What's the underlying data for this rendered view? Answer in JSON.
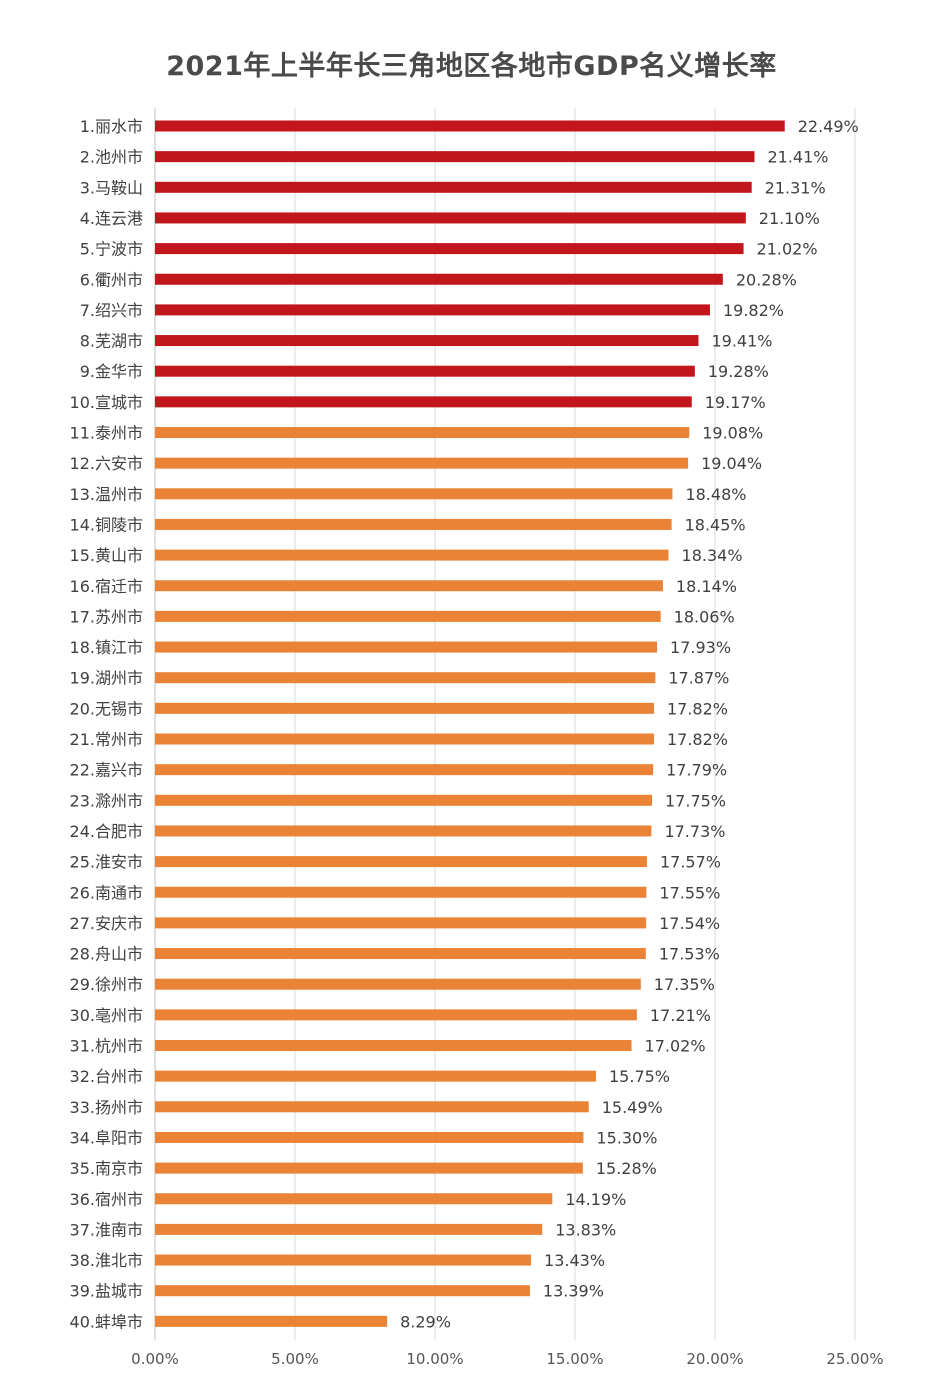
{
  "chart_data": {
    "type": "bar",
    "orientation": "horizontal",
    "title": "2021年上半年长三角地区各地市GDP名义增长率",
    "xlabel": "",
    "ylabel": "",
    "xlim": [
      0,
      25
    ],
    "x_ticks": [
      "0.00%",
      "5.00%",
      "10.00%",
      "15.00%",
      "20.00%",
      "25.00%"
    ],
    "grid": "vertical",
    "colors": {
      "top10": "#c0161c",
      "rest": "#ea8335",
      "gridline": "#d9d9d9",
      "axis": "#bfbfbf",
      "text": "#404040"
    },
    "categories": [
      "1.丽水市",
      "2.池州市",
      "3.马鞍山",
      "4.连云港",
      "5.宁波市",
      "6.衢州市",
      "7.绍兴市",
      "8.芜湖市",
      "9.金华市",
      "10.宣城市",
      "11.泰州市",
      "12.六安市",
      "13.温州市",
      "14.铜陵市",
      "15.黄山市",
      "16.宿迁市",
      "17.苏州市",
      "18.镇江市",
      "19.湖州市",
      "20.无锡市",
      "21.常州市",
      "22.嘉兴市",
      "23.滁州市",
      "24.合肥市",
      "25.淮安市",
      "26.南通市",
      "27.安庆市",
      "28.舟山市",
      "29.徐州市",
      "30.亳州市",
      "31.杭州市",
      "32.台州市",
      "33.扬州市",
      "34.阜阳市",
      "35.南京市",
      "36.宿州市",
      "37.淮南市",
      "38.淮北市",
      "39.盐城市",
      "40.蚌埠市"
    ],
    "values": [
      22.49,
      21.41,
      21.31,
      21.1,
      21.02,
      20.28,
      19.82,
      19.41,
      19.28,
      19.17,
      19.08,
      19.04,
      18.48,
      18.45,
      18.34,
      18.14,
      18.06,
      17.93,
      17.87,
      17.82,
      17.82,
      17.79,
      17.75,
      17.73,
      17.57,
      17.55,
      17.54,
      17.53,
      17.35,
      17.21,
      17.02,
      15.75,
      15.49,
      15.3,
      15.28,
      14.19,
      13.83,
      13.43,
      13.39,
      8.29
    ],
    "value_labels": [
      "22.49%",
      "21.41%",
      "21.31%",
      "21.10%",
      "21.02%",
      "20.28%",
      "19.82%",
      "19.41%",
      "19.28%",
      "19.17%",
      "19.08%",
      "19.04%",
      "18.48%",
      "18.45%",
      "18.34%",
      "18.14%",
      "18.06%",
      "17.93%",
      "17.87%",
      "17.82%",
      "17.82%",
      "17.79%",
      "17.75%",
      "17.73%",
      "17.57%",
      "17.55%",
      "17.54%",
      "17.53%",
      "17.35%",
      "17.21%",
      "17.02%",
      "15.75%",
      "15.49%",
      "15.30%",
      "15.28%",
      "14.19%",
      "13.83%",
      "13.43%",
      "13.39%",
      "8.29%"
    ],
    "highlight_count": 10
  }
}
